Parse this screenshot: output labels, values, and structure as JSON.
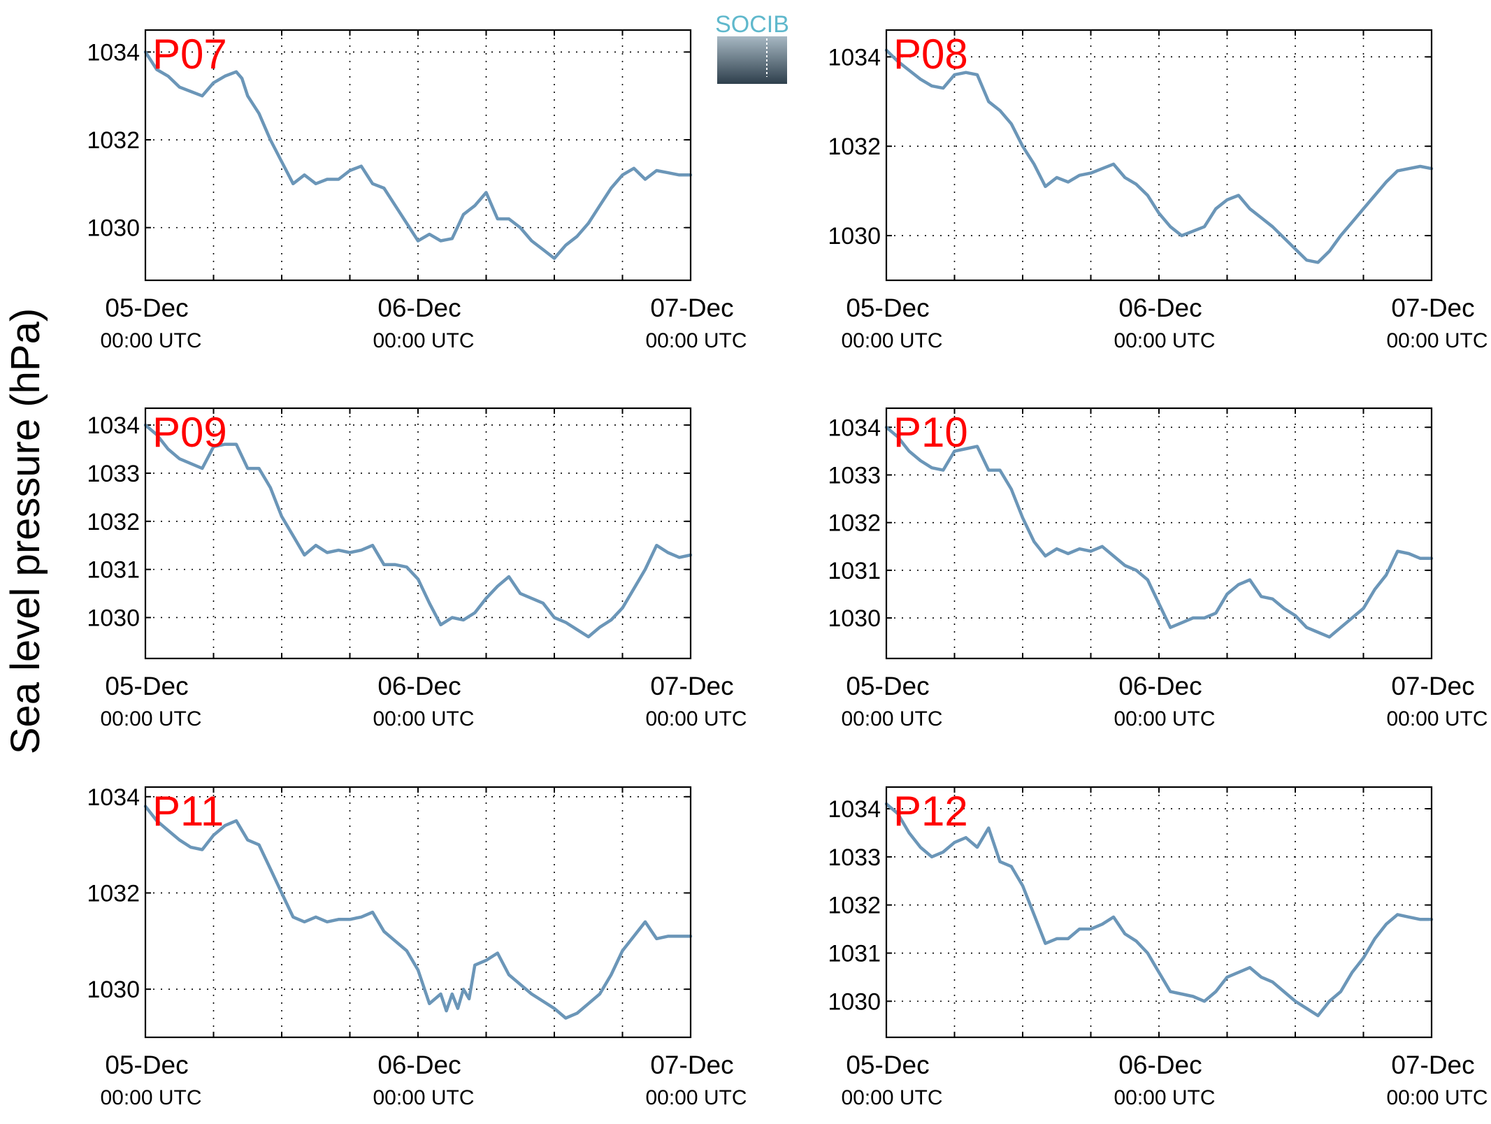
{
  "ylabel": "Sea level pressure (hPa)",
  "colors": {
    "line": "#6b96b8",
    "title": "#ff0000",
    "logo_text": "#5fb8cc"
  },
  "logo": {
    "text": "SOCIB"
  },
  "chart_data": [
    {
      "type": "line",
      "title": "P07",
      "xlim": [
        0,
        48
      ],
      "ylim": [
        1028.8,
        1034.5
      ],
      "yticks": [
        1030,
        1032,
        1034
      ],
      "xticks": [
        {
          "date": "05-Dec",
          "time": "00:00 UTC"
        },
        {
          "date": "06-Dec",
          "time": "00:00 UTC"
        },
        {
          "date": "07-Dec",
          "time": "00:00 UTC"
        }
      ],
      "grid": true,
      "x": [
        0,
        1,
        2,
        3,
        4,
        5,
        6,
        7,
        8,
        8.5,
        9,
        10,
        11,
        12,
        13,
        14,
        14.5,
        15,
        16,
        17,
        18,
        19,
        20,
        21,
        22,
        23,
        24,
        25,
        26,
        27,
        28,
        28.5,
        29,
        30,
        31,
        32,
        33,
        34,
        35,
        36,
        37,
        38,
        39,
        40,
        41,
        42,
        43,
        44,
        45,
        46,
        47,
        48
      ],
      "values": [
        1034.0,
        1033.6,
        1033.45,
        1033.2,
        1033.1,
        1033.0,
        1033.3,
        1033.45,
        1033.55,
        1033.4,
        1033.0,
        1032.6,
        1032.0,
        1031.5,
        1031.0,
        1031.2,
        1031.1,
        1031.0,
        1031.1,
        1031.1,
        1031.3,
        1031.4,
        1031.0,
        1030.9,
        1030.5,
        1030.1,
        1029.7,
        1029.85,
        1029.7,
        1029.75,
        1030.3,
        1030.4,
        1030.5,
        1030.8,
        1030.2,
        1030.2,
        1030.0,
        1029.7,
        1029.5,
        1029.3,
        1029.6,
        1029.8,
        1030.1,
        1030.5,
        1030.9,
        1031.2,
        1031.35,
        1031.1,
        1031.3,
        1031.25,
        1031.2,
        1031.2
      ]
    },
    {
      "type": "line",
      "title": "P08",
      "xlim": [
        0,
        48
      ],
      "ylim": [
        1029.0,
        1034.6
      ],
      "yticks": [
        1030,
        1032,
        1034
      ],
      "xticks": [
        {
          "date": "05-Dec",
          "time": "00:00 UTC"
        },
        {
          "date": "06-Dec",
          "time": "00:00 UTC"
        },
        {
          "date": "07-Dec",
          "time": "00:00 UTC"
        }
      ],
      "grid": true,
      "x": [
        0,
        1,
        2,
        3,
        4,
        5,
        6,
        7,
        8,
        9,
        10,
        11,
        12,
        13,
        14,
        15,
        16,
        17,
        18,
        19,
        20,
        21,
        22,
        23,
        24,
        25,
        26,
        27,
        28,
        29,
        30,
        31,
        32,
        33,
        34,
        35,
        36,
        37,
        38,
        39,
        40,
        41,
        42,
        43,
        44,
        45,
        46,
        47,
        48
      ],
      "values": [
        1034.15,
        1033.9,
        1033.7,
        1033.5,
        1033.35,
        1033.3,
        1033.6,
        1033.65,
        1033.6,
        1033.0,
        1032.8,
        1032.5,
        1032.0,
        1031.6,
        1031.1,
        1031.3,
        1031.2,
        1031.35,
        1031.4,
        1031.5,
        1031.6,
        1031.3,
        1031.15,
        1030.9,
        1030.5,
        1030.2,
        1030.0,
        1030.1,
        1030.2,
        1030.6,
        1030.8,
        1030.9,
        1030.6,
        1030.4,
        1030.2,
        1029.95,
        1029.7,
        1029.45,
        1029.4,
        1029.65,
        1030.0,
        1030.3,
        1030.6,
        1030.9,
        1031.2,
        1031.45,
        1031.5,
        1031.55,
        1031.5
      ]
    },
    {
      "type": "line",
      "title": "P09",
      "xlim": [
        0,
        48
      ],
      "ylim": [
        1029.15,
        1034.35
      ],
      "yticks": [
        1030,
        1031,
        1032,
        1033,
        1034
      ],
      "xticks": [
        {
          "date": "05-Dec",
          "time": "00:00 UTC"
        },
        {
          "date": "06-Dec",
          "time": "00:00 UTC"
        },
        {
          "date": "07-Dec",
          "time": "00:00 UTC"
        }
      ],
      "grid": true,
      "x": [
        0,
        1,
        2,
        3,
        4,
        5,
        6,
        7,
        8,
        9,
        10,
        11,
        12,
        13,
        14,
        15,
        16,
        17,
        18,
        19,
        20,
        21,
        22,
        23,
        24,
        25,
        26,
        27,
        28,
        29,
        30,
        31,
        32,
        33,
        34,
        35,
        36,
        37,
        38,
        39,
        40,
        41,
        42,
        43,
        44,
        45,
        46,
        47,
        48
      ],
      "values": [
        1034.0,
        1033.8,
        1033.5,
        1033.3,
        1033.2,
        1033.1,
        1033.55,
        1033.6,
        1033.6,
        1033.1,
        1033.1,
        1032.7,
        1032.1,
        1031.7,
        1031.3,
        1031.5,
        1031.35,
        1031.4,
        1031.35,
        1031.4,
        1031.5,
        1031.1,
        1031.1,
        1031.05,
        1030.8,
        1030.3,
        1029.85,
        1030.0,
        1029.95,
        1030.1,
        1030.4,
        1030.65,
        1030.85,
        1030.5,
        1030.4,
        1030.3,
        1030.0,
        1029.9,
        1029.75,
        1029.6,
        1029.8,
        1029.95,
        1030.2,
        1030.6,
        1031.0,
        1031.5,
        1031.35,
        1031.25,
        1031.3
      ]
    },
    {
      "type": "line",
      "title": "P10",
      "xlim": [
        0,
        48
      ],
      "ylim": [
        1029.15,
        1034.4
      ],
      "yticks": [
        1030,
        1031,
        1032,
        1033,
        1034
      ],
      "xticks": [
        {
          "date": "05-Dec",
          "time": "00:00 UTC"
        },
        {
          "date": "06-Dec",
          "time": "00:00 UTC"
        },
        {
          "date": "07-Dec",
          "time": "00:00 UTC"
        }
      ],
      "grid": true,
      "x": [
        0,
        1,
        2,
        3,
        4,
        5,
        6,
        7,
        8,
        9,
        10,
        11,
        12,
        13,
        14,
        15,
        16,
        17,
        18,
        19,
        20,
        21,
        22,
        23,
        24,
        25,
        26,
        27,
        28,
        29,
        30,
        31,
        32,
        33,
        34,
        35,
        36,
        37,
        38,
        39,
        40,
        41,
        42,
        43,
        44,
        45,
        46,
        47,
        48
      ],
      "values": [
        1034.0,
        1033.8,
        1033.5,
        1033.3,
        1033.15,
        1033.1,
        1033.5,
        1033.55,
        1033.6,
        1033.1,
        1033.1,
        1032.7,
        1032.1,
        1031.6,
        1031.3,
        1031.45,
        1031.35,
        1031.45,
        1031.4,
        1031.5,
        1031.3,
        1031.1,
        1031.0,
        1030.8,
        1030.3,
        1029.8,
        1029.9,
        1030.0,
        1030.0,
        1030.1,
        1030.5,
        1030.7,
        1030.8,
        1030.45,
        1030.4,
        1030.2,
        1030.05,
        1029.8,
        1029.7,
        1029.6,
        1029.8,
        1030.0,
        1030.2,
        1030.6,
        1030.9,
        1031.4,
        1031.35,
        1031.25,
        1031.25
      ]
    },
    {
      "type": "line",
      "title": "P11",
      "xlim": [
        0,
        48
      ],
      "ylim": [
        1029.0,
        1034.2
      ],
      "yticks": [
        1030,
        1032,
        1034
      ],
      "xticks": [
        {
          "date": "05-Dec",
          "time": "00:00 UTC"
        },
        {
          "date": "06-Dec",
          "time": "00:00 UTC"
        },
        {
          "date": "07-Dec",
          "time": "00:00 UTC"
        }
      ],
      "grid": true,
      "x": [
        0,
        1,
        2,
        3,
        4,
        5,
        6,
        7,
        8,
        9,
        10,
        11,
        12,
        13,
        14,
        15,
        16,
        17,
        18,
        19,
        20,
        21,
        22,
        23,
        24,
        25,
        26,
        26.5,
        27,
        27.5,
        28,
        28.5,
        29,
        30,
        31,
        32,
        33,
        34,
        35,
        36,
        37,
        38,
        39,
        40,
        41,
        42,
        43,
        44,
        45,
        46,
        47,
        48
      ],
      "values": [
        1033.8,
        1033.5,
        1033.3,
        1033.1,
        1032.95,
        1032.9,
        1033.2,
        1033.4,
        1033.5,
        1033.1,
        1033.0,
        1032.5,
        1032.0,
        1031.5,
        1031.4,
        1031.5,
        1031.4,
        1031.45,
        1031.45,
        1031.5,
        1031.6,
        1031.2,
        1031.0,
        1030.8,
        1030.4,
        1029.7,
        1029.9,
        1029.55,
        1029.9,
        1029.6,
        1030.0,
        1029.8,
        1030.5,
        1030.6,
        1030.75,
        1030.3,
        1030.1,
        1029.9,
        1029.75,
        1029.6,
        1029.4,
        1029.5,
        1029.7,
        1029.9,
        1030.3,
        1030.8,
        1031.1,
        1031.4,
        1031.05,
        1031.1,
        1031.1,
        1031.1
      ]
    },
    {
      "type": "line",
      "title": "P12",
      "xlim": [
        0,
        48
      ],
      "ylim": [
        1029.25,
        1034.45
      ],
      "yticks": [
        1030,
        1031,
        1032,
        1033,
        1034
      ],
      "xticks": [
        {
          "date": "05-Dec",
          "time": "00:00 UTC"
        },
        {
          "date": "06-Dec",
          "time": "00:00 UTC"
        },
        {
          "date": "07-Dec",
          "time": "00:00 UTC"
        }
      ],
      "grid": true,
      "x": [
        0,
        1,
        2,
        3,
        4,
        5,
        6,
        7,
        8,
        9,
        10,
        11,
        12,
        13,
        14,
        15,
        16,
        17,
        18,
        19,
        20,
        21,
        22,
        23,
        24,
        25,
        26,
        27,
        28,
        29,
        30,
        31,
        32,
        33,
        34,
        35,
        36,
        37,
        38,
        39,
        40,
        41,
        42,
        43,
        44,
        45,
        46,
        47,
        48
      ],
      "values": [
        1034.1,
        1033.9,
        1033.5,
        1033.2,
        1033.0,
        1033.1,
        1033.3,
        1033.4,
        1033.2,
        1033.6,
        1032.9,
        1032.8,
        1032.4,
        1031.8,
        1031.2,
        1031.3,
        1031.3,
        1031.5,
        1031.5,
        1031.6,
        1031.75,
        1031.4,
        1031.25,
        1031.0,
        1030.6,
        1030.2,
        1030.15,
        1030.1,
        1030.0,
        1030.2,
        1030.5,
        1030.6,
        1030.7,
        1030.5,
        1030.4,
        1030.2,
        1030.0,
        1029.85,
        1029.7,
        1030.0,
        1030.2,
        1030.6,
        1030.9,
        1031.3,
        1031.6,
        1031.8,
        1031.75,
        1031.7,
        1031.7
      ]
    }
  ]
}
